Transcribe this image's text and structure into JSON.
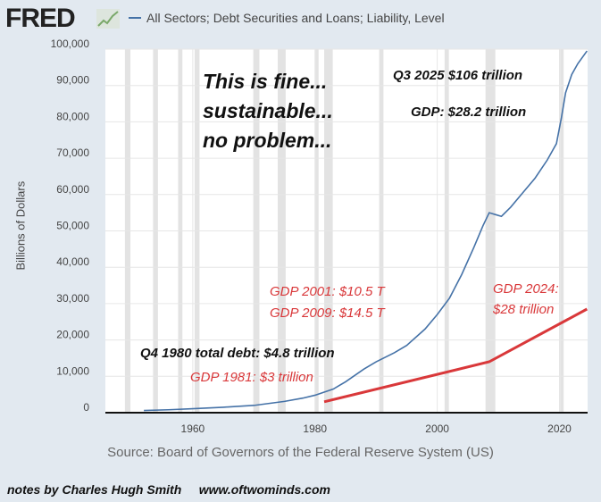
{
  "header": {
    "logo": "FRED",
    "legend": "All Sectors; Debt Securities and Loans; Liability, Level"
  },
  "colors": {
    "debt": "#4572a7",
    "gdp": "#d9383a",
    "recession": "#e3e3e3",
    "background": "#e2e9f0"
  },
  "chart_data": {
    "type": "line",
    "title": "All Sectors; Debt Securities and Loans; Liability, Level",
    "ylabel": "Billions of Dollars",
    "xlabel": "",
    "xlim": [
      1945.7,
      2024.6
    ],
    "ylim": [
      0,
      100000
    ],
    "yticks": [
      "0",
      "10,000",
      "20,000",
      "30,000",
      "40,000",
      "50,000",
      "60,000",
      "70,000",
      "80,000",
      "90,000",
      "100,000"
    ],
    "xticks": [
      "1960",
      "1980",
      "2000",
      "2020"
    ],
    "recessions": [
      [
        1948.9,
        1949.8
      ],
      [
        1953.5,
        1954.3
      ],
      [
        1957.6,
        1958.3
      ],
      [
        1960.3,
        1961.1
      ],
      [
        1969.9,
        1970.9
      ],
      [
        1973.9,
        1975.2
      ],
      [
        1980.0,
        1980.5
      ],
      [
        1981.5,
        1982.9
      ],
      [
        1990.5,
        1991.2
      ],
      [
        2001.2,
        2001.9
      ],
      [
        2007.9,
        2009.5
      ],
      [
        2020.1,
        2020.4
      ]
    ],
    "series": [
      {
        "name": "All Sectors; Debt Securities and Loans; Liability, Level",
        "x": [
          1952,
          1956,
          1960,
          1965,
          1970,
          1975,
          1978,
          1980,
          1983,
          1985,
          1988,
          1990,
          1993,
          1995,
          1998,
          2000,
          2002,
          2004,
          2006,
          2007.5,
          2008.5,
          2009.5,
          2010.5,
          2012,
          2014,
          2016,
          2018,
          2019.5,
          2020.3,
          2021,
          2022,
          2023,
          2024.5
        ],
        "values": [
          600,
          800,
          1100,
          1500,
          2000,
          3100,
          4000,
          4800,
          6500,
          8500,
          12000,
          14000,
          16500,
          18500,
          23000,
          27000,
          31500,
          38000,
          45500,
          51500,
          55000,
          54500,
          54000,
          56500,
          60500,
          64500,
          69500,
          74000,
          81000,
          88000,
          93000,
          96000,
          99500
        ]
      },
      {
        "name": "GDP (annotated)",
        "x": [
          1981.5,
          2008.5,
          2024.5
        ],
        "values": [
          3000,
          14000,
          28500
        ]
      }
    ],
    "annotations": [
      {
        "text": "This is fine...",
        "color": "black"
      },
      {
        "text": "sustainable...",
        "color": "black"
      },
      {
        "text": "no problem...",
        "color": "black"
      },
      {
        "text": "Q3 2025 $106 trillion",
        "color": "black"
      },
      {
        "text": "GDP: $28.2 trillion",
        "color": "black"
      },
      {
        "text": "GDP 2001: $10.5 T",
        "color": "red"
      },
      {
        "text": "GDP 2009: $14.5 T",
        "color": "red"
      },
      {
        "text": "GDP 2024:",
        "color": "red"
      },
      {
        "text": "$28 trillion",
        "color": "red"
      },
      {
        "text": "Q4 1980 total debt: $4.8 trillion",
        "color": "black"
      },
      {
        "text": "GDP 1981: $3 trillion",
        "color": "red"
      }
    ],
    "source": "Source: Board of Governors of the Federal Reserve System (US)"
  },
  "footer": {
    "notes": "notes by Charles Hugh Smith     www.oftwominds.com"
  }
}
